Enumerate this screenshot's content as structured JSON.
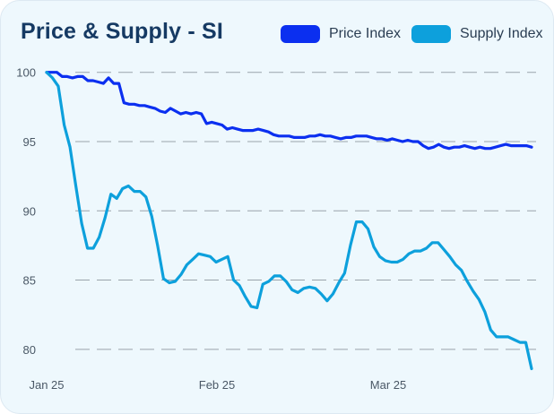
{
  "colors": {
    "price": "#0b2ff0",
    "supply": "#0da0dc"
  },
  "chart_data": {
    "type": "line",
    "title": "Price & Supply - SI",
    "xlabel": "",
    "ylabel": "",
    "x_ticks": [
      "Jan 25",
      "Feb 25",
      "Mar 25"
    ],
    "y_ticks": [
      80,
      85,
      90,
      95,
      100
    ],
    "ylim": [
      78.5,
      100.5
    ],
    "grid": true,
    "legend_position": "top-right",
    "series": [
      {
        "name": "Price Index",
        "color": "#0b2ff0",
        "values": [
          100,
          100,
          100,
          99.7,
          99.7,
          99.6,
          99.7,
          99.7,
          99.4,
          99.4,
          99.3,
          99.2,
          99.6,
          99.2,
          99.2,
          97.8,
          97.7,
          97.7,
          97.6,
          97.6,
          97.5,
          97.4,
          97.2,
          97.1,
          97.4,
          97.2,
          97.0,
          97.1,
          97.0,
          97.1,
          97.0,
          96.3,
          96.4,
          96.3,
          96.2,
          95.9,
          96.0,
          95.9,
          95.8,
          95.8,
          95.8,
          95.9,
          95.8,
          95.7,
          95.5,
          95.4,
          95.4,
          95.4,
          95.3,
          95.3,
          95.3,
          95.4,
          95.4,
          95.5,
          95.4,
          95.4,
          95.3,
          95.2,
          95.3,
          95.3,
          95.4,
          95.4,
          95.4,
          95.3,
          95.2,
          95.2,
          95.1,
          95.2,
          95.1,
          95.0,
          95.1,
          95.0,
          95.0,
          94.7,
          94.5,
          94.6,
          94.8,
          94.6,
          94.5,
          94.6,
          94.6,
          94.7,
          94.6,
          94.5,
          94.6,
          94.5,
          94.5,
          94.6,
          94.7,
          94.8,
          94.7,
          94.7,
          94.7,
          94.7,
          94.6
        ]
      },
      {
        "name": "Supply Index",
        "color": "#0da0dc",
        "values": [
          100,
          99.6,
          99.0,
          96.2,
          94.6,
          91.8,
          89.1,
          87.3,
          87.3,
          88.1,
          89.5,
          91.2,
          90.9,
          91.6,
          91.8,
          91.4,
          91.4,
          91.0,
          89.6,
          87.5,
          85.1,
          84.8,
          84.9,
          85.4,
          86.1,
          86.5,
          86.9,
          86.8,
          86.7,
          86.3,
          86.5,
          86.7,
          85.0,
          84.6,
          83.8,
          83.1,
          83.0,
          84.7,
          84.9,
          85.3,
          85.3,
          84.9,
          84.3,
          84.1,
          84.4,
          84.5,
          84.4,
          84.0,
          83.5,
          84.0,
          84.8,
          85.5,
          87.5,
          89.2,
          89.2,
          88.7,
          87.4,
          86.7,
          86.4,
          86.3,
          86.3,
          86.5,
          86.9,
          87.1,
          87.1,
          87.3,
          87.7,
          87.7,
          87.2,
          86.7,
          86.1,
          85.7,
          84.9,
          84.2,
          83.6,
          82.7,
          81.4,
          80.9,
          80.9,
          80.9,
          80.7,
          80.5,
          80.5,
          78.6
        ]
      }
    ]
  }
}
